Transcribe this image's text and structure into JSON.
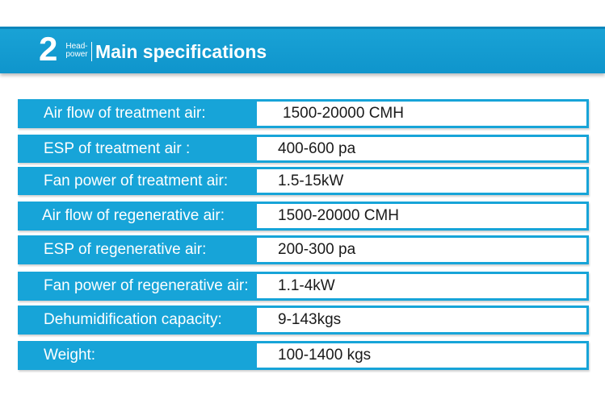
{
  "header": {
    "number": "2",
    "sub_line1": "Head-",
    "sub_line2": "power",
    "title": "Main specifications"
  },
  "specs": [
    {
      "label": "Air flow of treatment air:",
      "value": "1500-20000 CMH"
    },
    {
      "label": "ESP of treatment air :",
      "value": "400-600 pa"
    },
    {
      "label": "Fan power of treatment air:",
      "value": "1.5-15kW"
    },
    {
      "label": "Air flow of regenerative air:",
      "value": "1500-20000 CMH"
    },
    {
      "label": "ESP of regenerative air:",
      "value": "200-300 pa"
    },
    {
      "label": "Fan power of regenerative air:",
      "value": "1.1-4kW"
    },
    {
      "label": "Dehumidification capacity:",
      "value": "9-143kgs"
    },
    {
      "label": "Weight:",
      "value": "100-1400 kgs"
    }
  ],
  "colors": {
    "accent": "#17a4d8",
    "header": "#1aa3d6",
    "value_background": "#ffffff"
  }
}
